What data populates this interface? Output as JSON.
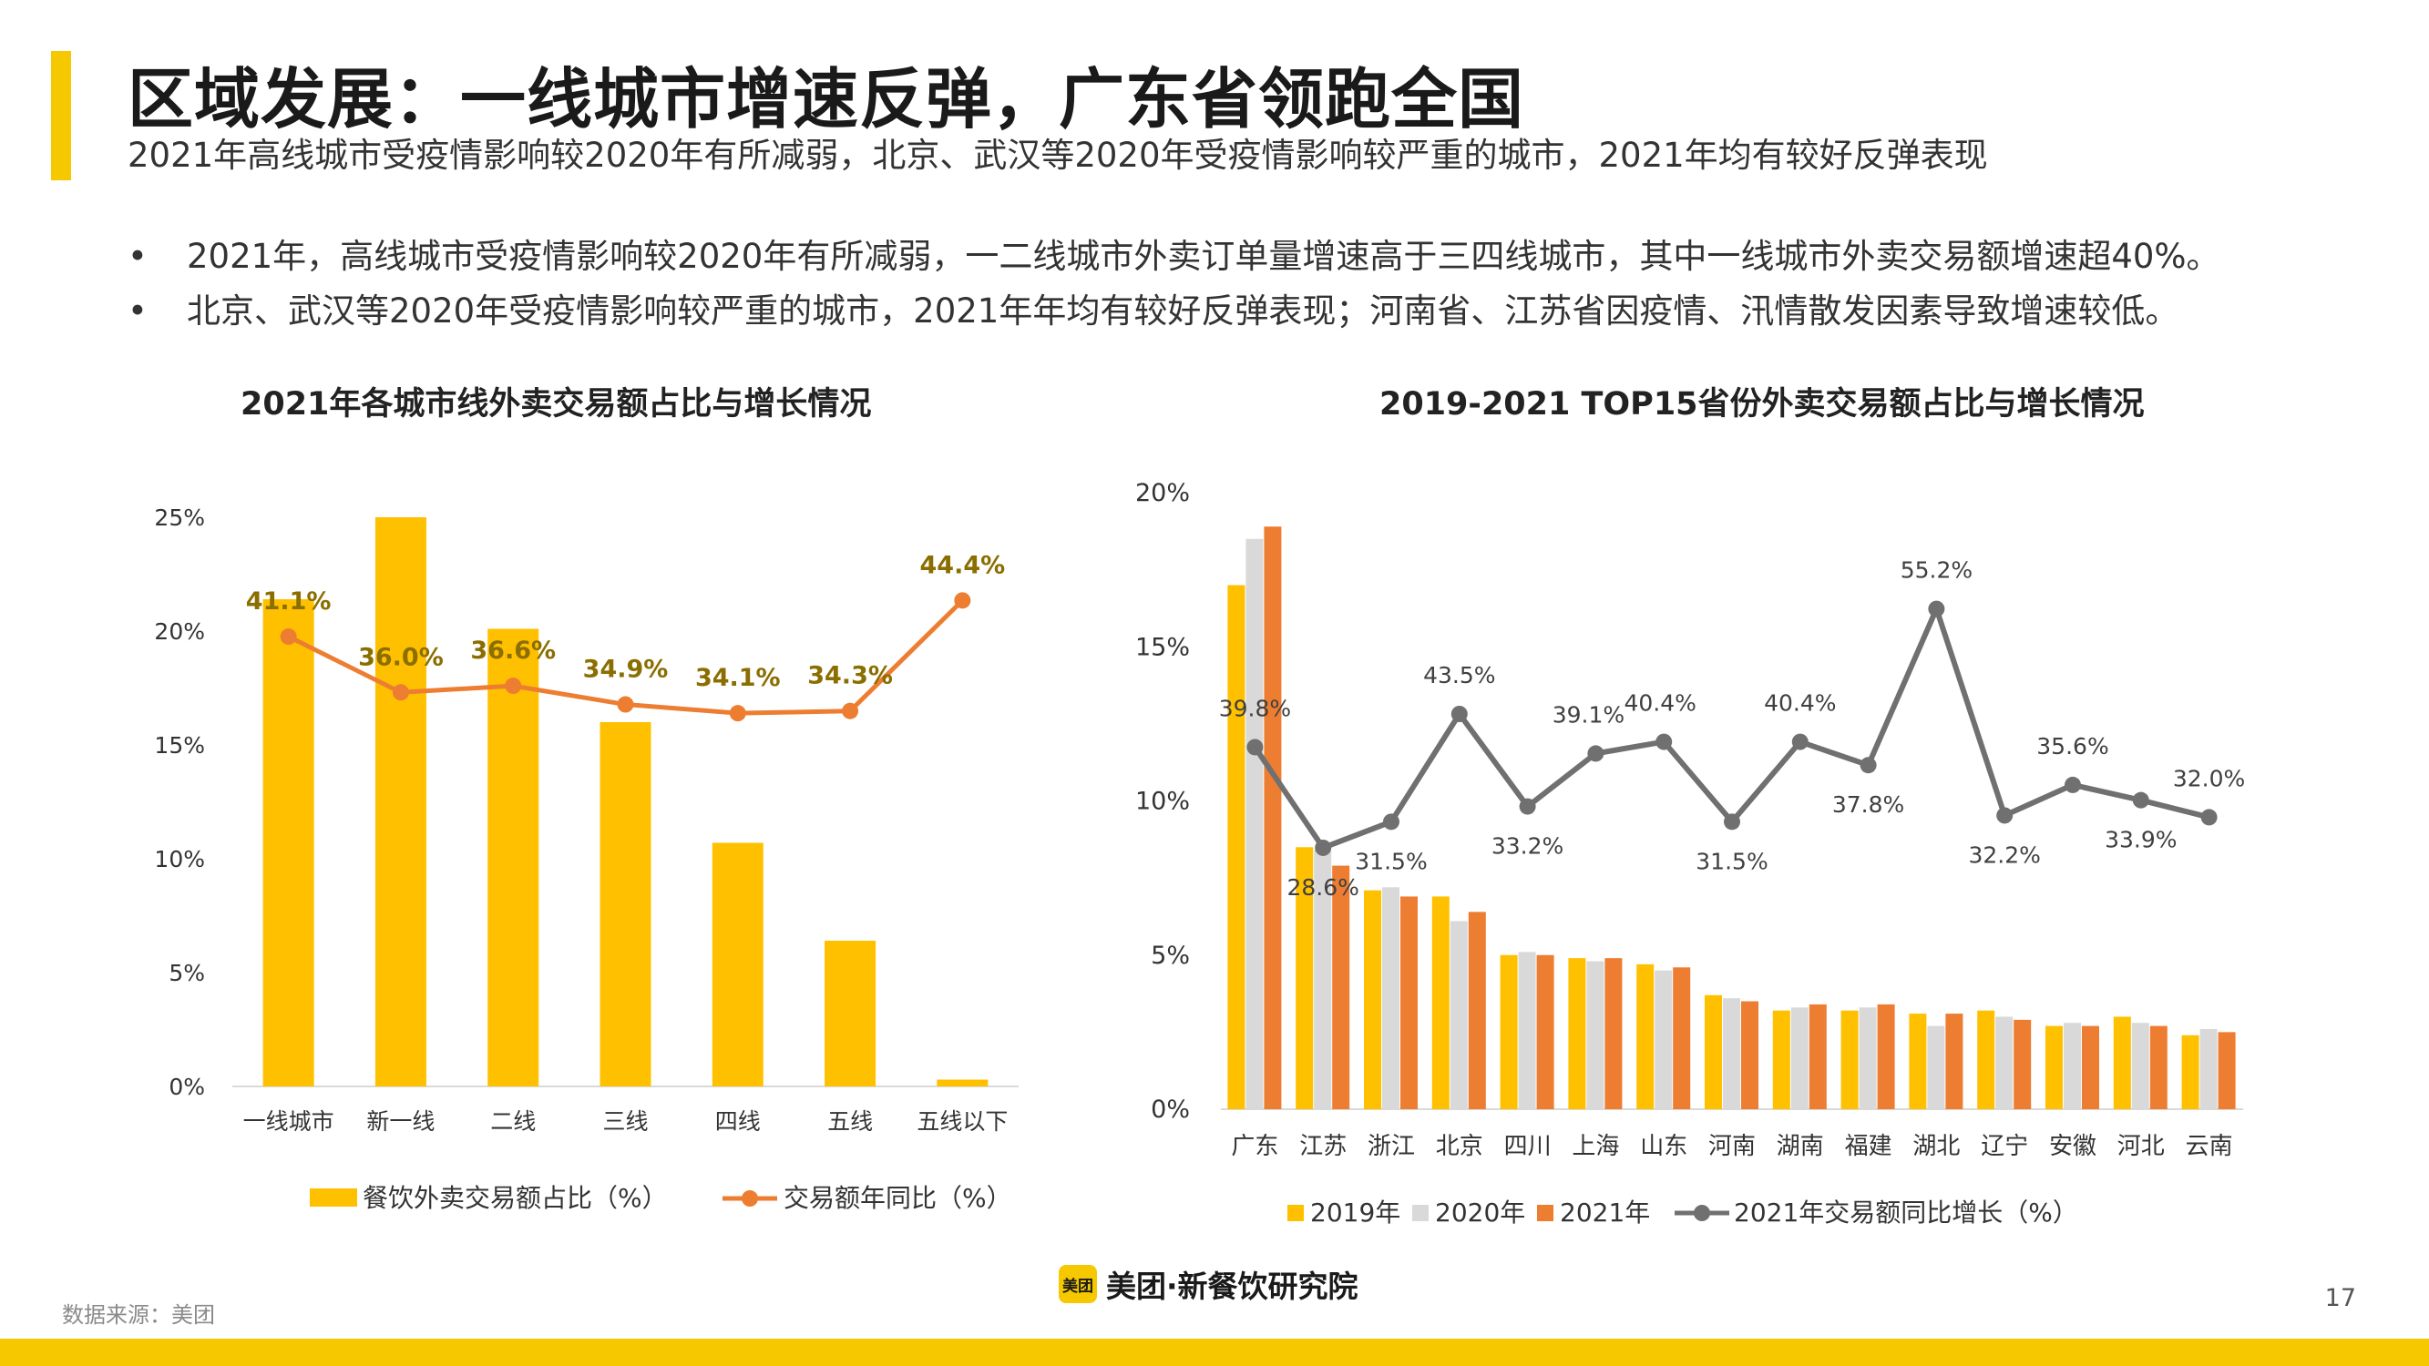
{
  "header": {
    "title": "区域发展：一线城市增速反弹，广东省领跑全国",
    "subtitle": "2021年高线城市受疫情影响较2020年有所减弱，北京、武汉等2020年受疫情影响较严重的城市，2021年均有较好反弹表现"
  },
  "bullets": [
    {
      "marker": "•",
      "text": "2021年，高线城市受疫情影响较2020年有所减弱，一二线城市外卖订单量增速高于三四线城市，其中一线城市外卖交易额增速超40%。"
    },
    {
      "marker": "•",
      "text": "北京、武汉等2020年受疫情影响较严重的城市，2021年年均有较好反弹表现；河南省、江苏省因疫情、汛情散发因素导致增速较低。"
    }
  ],
  "colors": {
    "accent": "#F6C800",
    "bar2021": "#FFC000",
    "bar2020": "#D9D9D9",
    "bar2021b": "#ED7D31",
    "line_left": "#ED7D31",
    "line_right": "#707070",
    "label_left": "#8B6E00",
    "label_right": "#404040"
  },
  "chart_data": [
    {
      "type": "bar",
      "title": "2021年各城市线外卖交易额占比与增长情况",
      "categories": [
        "一线城市",
        "新一线",
        "二线",
        "三线",
        "四线",
        "五线",
        "五线以下"
      ],
      "series": [
        {
          "name": "餐饮外卖交易额占比（%）",
          "type": "bar",
          "values": [
            21.4,
            25.0,
            20.1,
            16.0,
            10.7,
            6.4,
            0.3
          ]
        },
        {
          "name": "交易额年同比（%）",
          "type": "line",
          "values": [
            41.1,
            36.0,
            36.6,
            34.9,
            34.1,
            34.3,
            44.4
          ],
          "labels": [
            "41.1%",
            "36.0%",
            "36.6%",
            "34.9%",
            "34.1%",
            "34.3%",
            "44.4%"
          ]
        }
      ],
      "ylim": [
        0,
        25
      ],
      "yticks": [
        "0%",
        "5%",
        "10%",
        "15%",
        "20%",
        "25%"
      ],
      "grid": false,
      "legend_position": "bottom"
    },
    {
      "type": "bar",
      "title": "2019-2021 TOP15省份外卖交易额占比与增长情况",
      "categories": [
        "广东",
        "江苏",
        "浙江",
        "北京",
        "四川",
        "上海",
        "山东",
        "河南",
        "湖南",
        "福建",
        "湖北",
        "辽宁",
        "安徽",
        "河北",
        "云南"
      ],
      "series": [
        {
          "name": "2019年",
          "type": "bar",
          "values": [
            17.0,
            8.5,
            7.1,
            6.9,
            5.0,
            4.9,
            4.7,
            3.7,
            3.2,
            3.2,
            3.1,
            3.2,
            2.7,
            3.0,
            2.4
          ]
        },
        {
          "name": "2020年",
          "type": "bar",
          "values": [
            18.5,
            8.4,
            7.2,
            6.1,
            5.1,
            4.8,
            4.5,
            3.6,
            3.3,
            3.3,
            2.7,
            3.0,
            2.8,
            2.8,
            2.6
          ]
        },
        {
          "name": "2021年",
          "type": "bar",
          "values": [
            18.9,
            7.9,
            6.9,
            6.4,
            5.0,
            4.9,
            4.6,
            3.5,
            3.4,
            3.4,
            3.1,
            2.9,
            2.7,
            2.7,
            2.5
          ]
        },
        {
          "name": "2021年交易额同比增长（%）",
          "type": "line",
          "values": [
            39.8,
            28.6,
            31.5,
            43.5,
            33.2,
            39.1,
            40.4,
            31.5,
            40.4,
            37.8,
            55.2,
            32.2,
            35.6,
            33.9,
            32.0
          ],
          "labels": [
            "39.8%",
            "28.6%",
            "31.5%",
            "43.5%",
            "33.2%",
            "39.1%",
            "40.4%",
            "31.5%",
            "40.4%",
            "37.8%",
            "55.2%",
            "32.2%",
            "35.6%",
            "33.9%",
            "32.0%"
          ]
        }
      ],
      "ylim": [
        0,
        20
      ],
      "yticks": [
        "0%",
        "5%",
        "10%",
        "15%",
        "20%"
      ],
      "grid": false,
      "legend_position": "bottom"
    }
  ],
  "footer": {
    "source": "数据来源：美团",
    "logo_mark": "美团",
    "logo_text": "美团·新餐饮研究院",
    "page": "17"
  }
}
